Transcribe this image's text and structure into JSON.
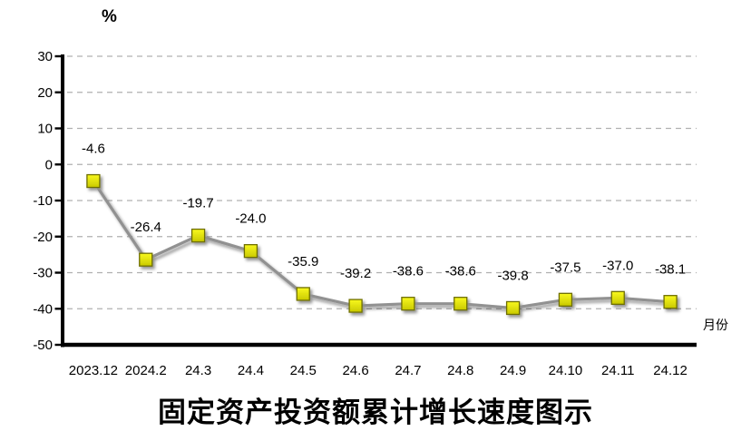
{
  "chart_data": {
    "type": "line",
    "title": "固定资产投资额累计增长速度图示",
    "y_axis_unit": "%",
    "x_axis_unit": "月份",
    "categories": [
      "2023.12",
      "2024.2",
      "24.3",
      "24.4",
      "24.5",
      "24.6",
      "24.7",
      "24.8",
      "24.9",
      "24.10",
      "24.11",
      "24.12"
    ],
    "values": [
      -4.6,
      -26.4,
      -19.7,
      -24.0,
      -35.9,
      -39.2,
      -38.6,
      -38.6,
      -39.8,
      -37.5,
      -37.0,
      -38.1
    ],
    "data_labels": [
      "-4.6",
      "-26.4",
      "-19.7",
      "-24.0",
      "-35.9",
      "-39.2",
      "-38.6",
      "-38.6",
      "-39.8",
      "-37.5",
      "-37.0",
      "-38.1"
    ],
    "y_ticks": [
      30,
      20,
      10,
      0,
      -10,
      -20,
      -30,
      -40,
      -50
    ],
    "ylim": [
      -50,
      30
    ],
    "grid": true,
    "legend_position": "none",
    "colors": {
      "marker_fill_top": "#f9f91e",
      "marker_fill_bottom": "#c9c900",
      "marker_border": "#6e6e00",
      "series_line": "#919191",
      "gridline": "#b0b0b0",
      "axis": "#000000",
      "background": "#ffffff"
    }
  }
}
